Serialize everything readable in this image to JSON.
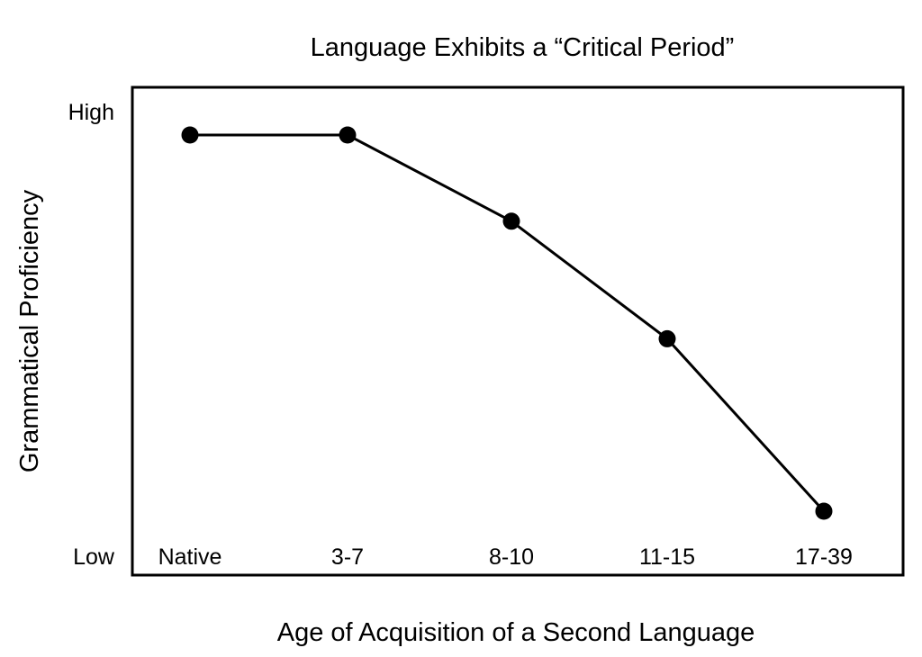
{
  "chart_data": {
    "type": "line",
    "title": "Language Exhibits a “Critical Period”",
    "xlabel": "Age of Acquisition of a Second Language",
    "ylabel": "Grammatical Proficiency",
    "categories": [
      "Native",
      "3-7",
      "8-10",
      "11-15",
      "17-39"
    ],
    "series": [
      {
        "values": [
          0.94,
          0.94,
          0.72,
          0.42,
          -0.02
        ]
      }
    ],
    "y_ticks": {
      "high": "High",
      "low": "Low"
    },
    "ylim": [
      -0.1,
      1.0
    ],
    "grid": false,
    "legend": "none",
    "colors": {
      "line": "#000000",
      "marker": "#000000",
      "frame": "#000000"
    }
  }
}
